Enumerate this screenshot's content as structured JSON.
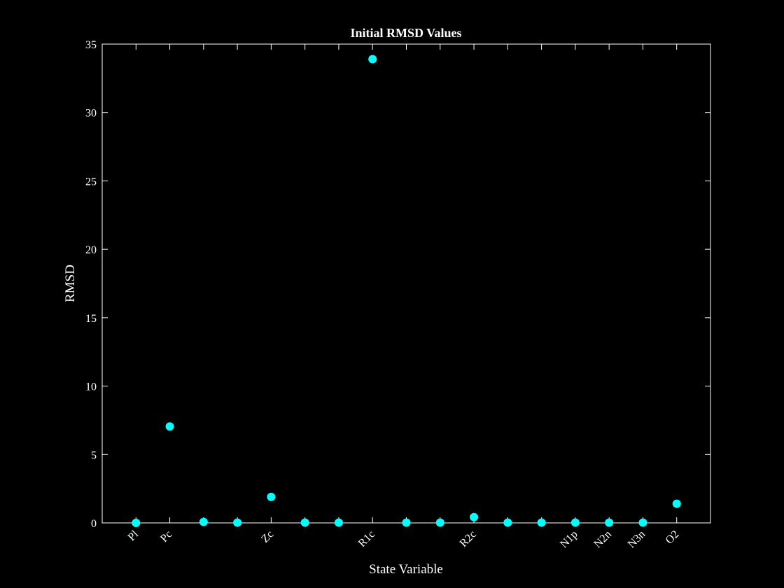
{
  "chart_data": {
    "type": "scatter",
    "title": "Initial RMSD Values",
    "xlabel": "State Variable",
    "ylabel": "RMSD",
    "ylim": [
      0,
      35
    ],
    "yticks": [
      0,
      5,
      10,
      15,
      20,
      25,
      30,
      35
    ],
    "xlim": [
      0,
      18
    ],
    "x": [
      1,
      2,
      3,
      4,
      5,
      6,
      7,
      8,
      9,
      10,
      11,
      12,
      13,
      14,
      15,
      16,
      17
    ],
    "xtick_labels": [
      "Pl",
      "Pc",
      "",
      "",
      "Zc",
      "",
      "",
      "R1c",
      "",
      "",
      "R2c",
      "",
      "",
      "N1p",
      "N2n",
      "N3n",
      "O2"
    ],
    "series": [
      {
        "values": [
          0.0,
          7.05,
          0.07,
          0.02,
          1.9,
          0.02,
          0.02,
          33.9,
          0.02,
          0.02,
          0.42,
          0.02,
          0.02,
          0.02,
          0.02,
          0.02,
          1.4
        ],
        "color": "#00ffff"
      }
    ],
    "grid": false,
    "legend": "none",
    "background": "#000000",
    "axis_color": "#ffffff"
  }
}
